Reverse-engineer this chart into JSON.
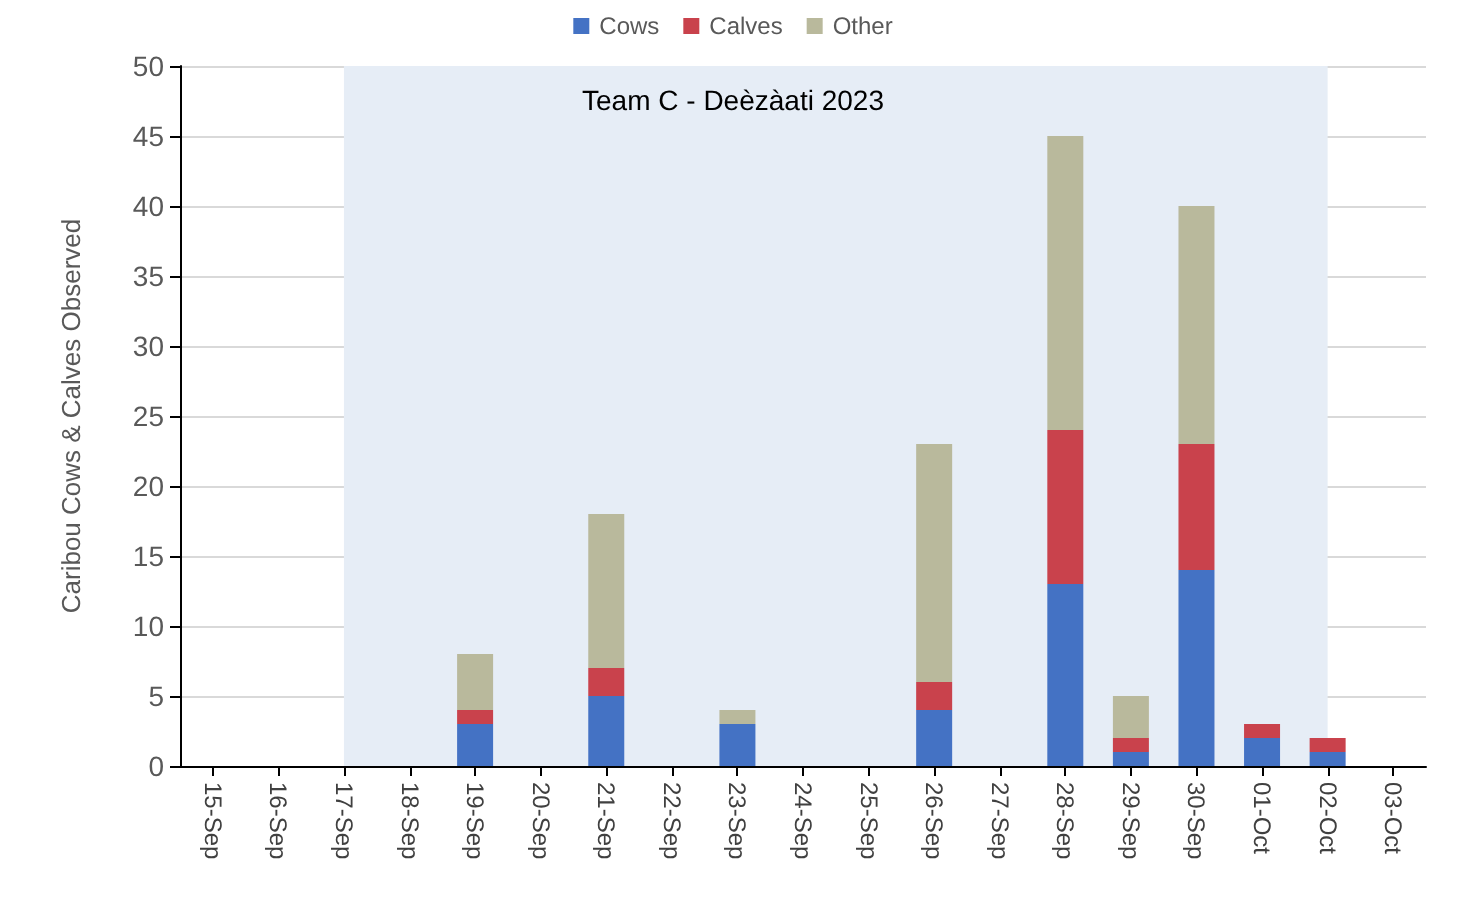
{
  "chart_data": {
    "type": "bar",
    "title": "Team C - Deèzàati 2023",
    "ylabel": "Caribou Cows & Calves Observed",
    "categories": [
      "15-Sep",
      "16-Sep",
      "17-Sep",
      "18-Sep",
      "19-Sep",
      "20-Sep",
      "21-Sep",
      "22-Sep",
      "23-Sep",
      "24-Sep",
      "25-Sep",
      "26-Sep",
      "27-Sep",
      "28-Sep",
      "29-Sep",
      "30-Sep",
      "01-Oct",
      "02-Oct",
      "03-Oct"
    ],
    "series": [
      {
        "name": "Cows",
        "color": "#4472c4",
        "values": [
          0,
          0,
          0,
          0,
          3,
          0,
          5,
          0,
          3,
          0,
          0,
          4,
          0,
          13,
          1,
          14,
          2,
          1,
          0
        ]
      },
      {
        "name": "Calves",
        "color": "#c9424c",
        "values": [
          0,
          0,
          0,
          0,
          1,
          0,
          2,
          0,
          0,
          0,
          0,
          2,
          0,
          11,
          1,
          9,
          1,
          1,
          0
        ]
      },
      {
        "name": "Other",
        "color": "#b9b99c",
        "values": [
          0,
          0,
          0,
          0,
          4,
          0,
          11,
          0,
          1,
          0,
          0,
          17,
          0,
          21,
          3,
          17,
          0,
          0,
          0
        ]
      }
    ],
    "stacked": true,
    "ylim": [
      0,
      50
    ],
    "yticks": [
      0,
      5,
      10,
      15,
      20,
      25,
      30,
      35,
      40,
      45,
      50
    ],
    "grid": "y",
    "legend": "top",
    "bands": [
      {
        "axis": "x",
        "from": "17-Sep",
        "to": "02-Oct",
        "color": "#e6edf6"
      }
    ]
  }
}
